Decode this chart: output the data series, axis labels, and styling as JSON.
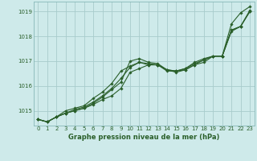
{
  "xlabel": "Graphe pression niveau de la mer (hPa)",
  "background_color": "#ceeaea",
  "grid_color": "#a8cccc",
  "line_color": "#2a5f2a",
  "ylim": [
    1014.4,
    1019.4
  ],
  "xlim": [
    -0.5,
    23.5
  ],
  "yticks": [
    1015,
    1016,
    1017,
    1018,
    1019
  ],
  "xticks": [
    0,
    1,
    2,
    3,
    4,
    5,
    6,
    7,
    8,
    9,
    10,
    11,
    12,
    13,
    14,
    15,
    16,
    17,
    18,
    19,
    20,
    21,
    22,
    23
  ],
  "series": [
    [
      1014.65,
      1014.55,
      1014.75,
      1014.9,
      1015.0,
      1015.1,
      1015.25,
      1015.45,
      1015.6,
      1015.9,
      1016.55,
      1016.7,
      1016.85,
      1016.85,
      1016.65,
      1016.55,
      1016.65,
      1016.85,
      1017.05,
      1017.2,
      1017.2,
      1018.2,
      1018.4,
      1019.05
    ],
    [
      1014.65,
      1014.55,
      1014.75,
      1014.9,
      1015.05,
      1015.15,
      1015.35,
      1015.6,
      1015.9,
      1016.3,
      1016.75,
      1016.95,
      1016.85,
      1016.85,
      1016.65,
      1016.6,
      1016.7,
      1016.9,
      1017.05,
      1017.2,
      1017.2,
      1018.25,
      1018.4,
      1019.0
    ],
    [
      1014.65,
      1014.55,
      1014.75,
      1015.0,
      1015.1,
      1015.2,
      1015.5,
      1015.75,
      1016.1,
      1016.6,
      1016.8,
      1016.95,
      1016.9,
      1016.85,
      1016.6,
      1016.6,
      1016.7,
      1016.95,
      1017.1,
      1017.2,
      1017.2,
      1018.25,
      1018.4,
      1019.0
    ],
    [
      1014.65,
      1014.55,
      1014.75,
      1014.9,
      1015.0,
      1015.1,
      1015.3,
      1015.55,
      1015.85,
      1016.15,
      1017.0,
      1017.1,
      1016.95,
      1016.9,
      1016.65,
      1016.6,
      1016.65,
      1016.85,
      1016.95,
      1017.2,
      1017.2,
      1018.5,
      1018.95,
      1019.2
    ]
  ]
}
